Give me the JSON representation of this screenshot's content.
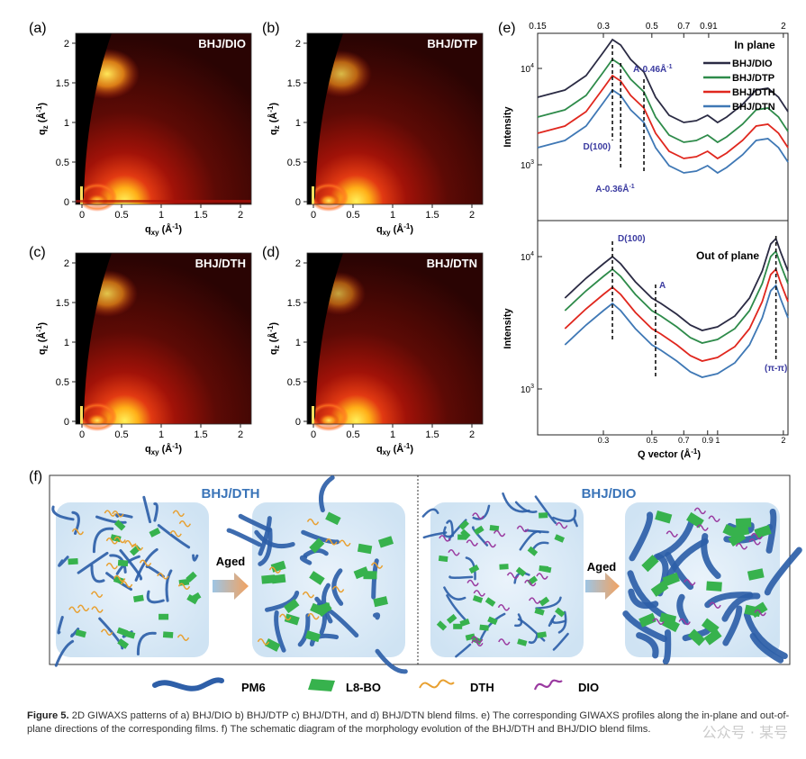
{
  "panels": [
    {
      "id": "a",
      "label": "(a)",
      "title": "BHJ/DIO"
    },
    {
      "id": "b",
      "label": "(b)",
      "title": "BHJ/DTP"
    },
    {
      "id": "c",
      "label": "(c)",
      "title": "BHJ/DTH"
    },
    {
      "id": "d",
      "label": "(d)",
      "title": "BHJ/DTN"
    }
  ],
  "giwaxs_axes": {
    "x_ticks": [
      "0",
      "0.5",
      "1",
      "1.5",
      "2"
    ],
    "y_ticks": [
      "0",
      "0.5",
      "1",
      "1.5",
      "2"
    ],
    "x_label": "q",
    "x_sub": "xy",
    "x_unit": " (Å",
    "y_label": "q",
    "y_sub": "z",
    "y_unit": " (Å",
    "inv": "-1",
    "close": ")"
  },
  "panel_e": {
    "label": "(e)",
    "top_ticks": [
      "0.15",
      "0.3",
      "0.5",
      "0.7",
      "0.91",
      "2"
    ],
    "bottom_ticks": [
      "0.3",
      "0.5",
      "0.7",
      "0.9",
      "1",
      "2"
    ],
    "xlabel": "Q vector (Å",
    "xlabel_sup": "-1",
    "xlabel_close": ")",
    "ylabel": "Intensity",
    "ytick_base": "10",
    "ytick_exp4": "4",
    "ytick_exp3": "3",
    "inplane_title": "In plane",
    "outplane_title": "Out of plane",
    "annotations": {
      "a046": "A-0.46Å",
      "a036": "A-0.36Å",
      "sup": "-1",
      "d100": "D(100)",
      "d100b": "D(100)",
      "a": "A",
      "pipi": "(π-π)"
    },
    "legend": [
      "BHJ/DIO",
      "BHJ/DTP",
      "BHJ/DTH",
      "BHJ/DTN"
    ],
    "colors": [
      "#2b2b44",
      "#2e8b4a",
      "#e0271e",
      "#3f78b5"
    ]
  },
  "panel_f": {
    "label": "(f)",
    "left_title": "BHJ/DTH",
    "right_title": "BHJ/DIO",
    "aged_left": "Aged",
    "aged_right": "Aged",
    "legend": [
      "PM6",
      "L8-BO",
      "DTH",
      "DIO"
    ]
  },
  "caption": {
    "fig": "Figure 5.",
    "text": " 2D GIWAXS patterns of a) BHJ/DIO b) BHJ/DTP c) BHJ/DTH, and d) BHJ/DTN blend films. e) The corresponding GIWAXS profiles along the in-plane and out-of-plane directions of the corresponding films. f) The schematic diagram of the morphology evolution of the BHJ/DTH and BHJ/DIO blend films."
  },
  "watermark": "公众号 · 某号"
}
